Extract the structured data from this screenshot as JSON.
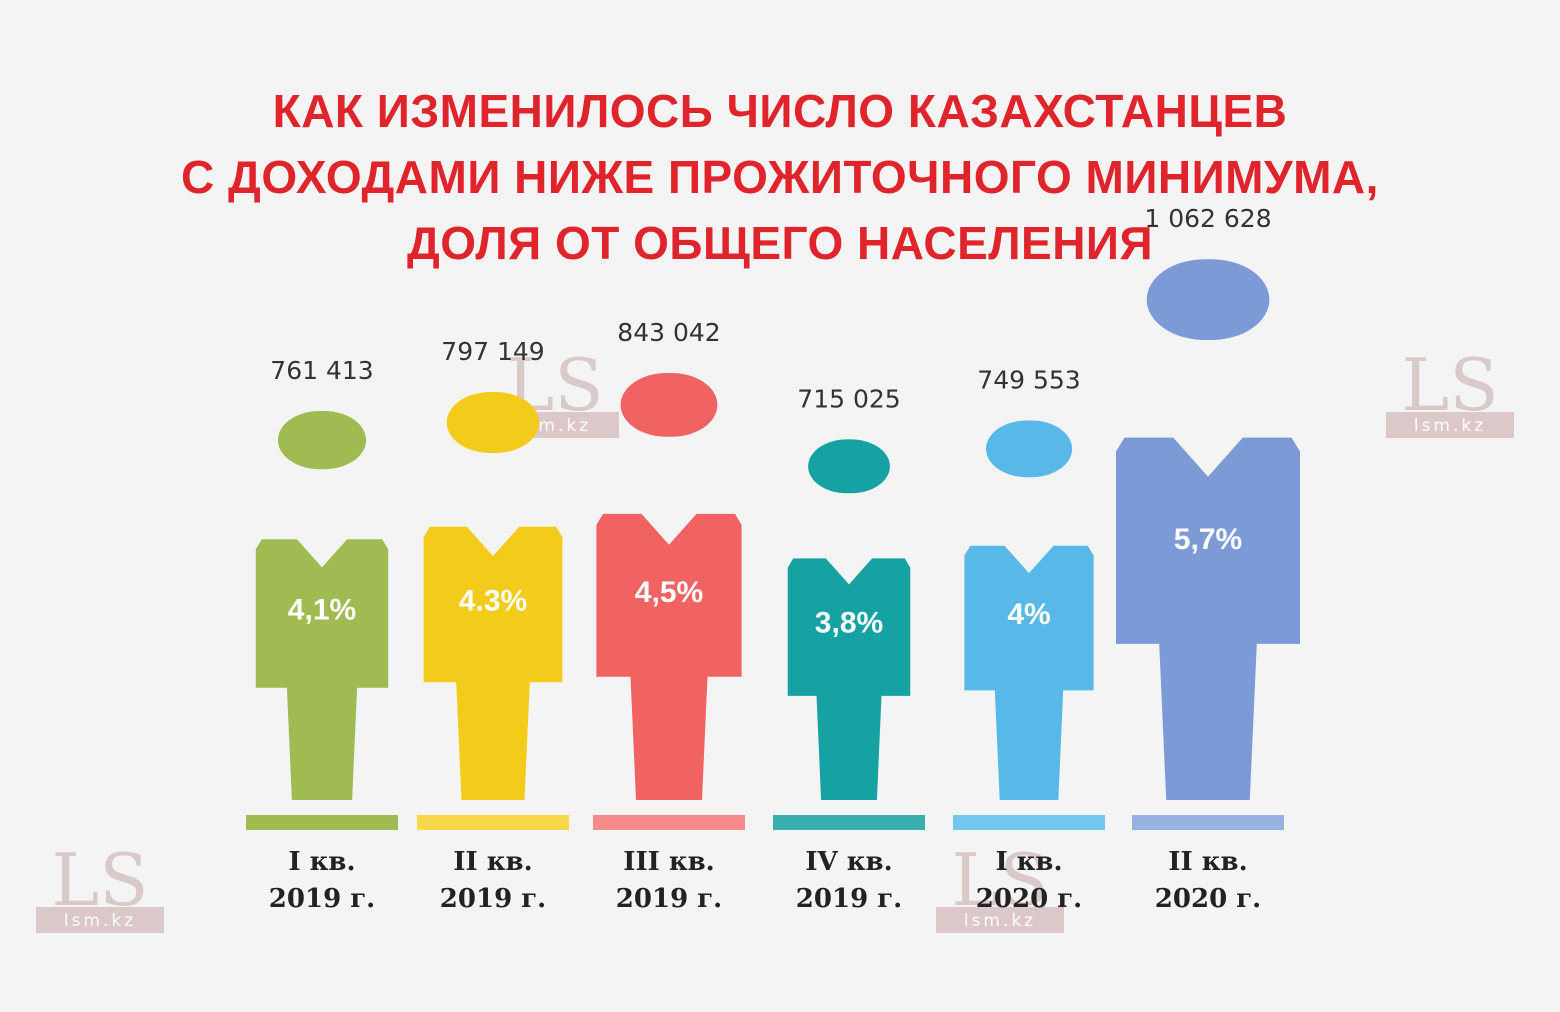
{
  "title_lines": [
    "КАК ИЗМЕНИЛОСЬ ЧИСЛО КАЗАХСТАНЦЕВ",
    "С ДОХОДАМИ НИЖЕ ПРОЖИТОЧНОГО МИНИМУМА,",
    "ДОЛЯ ОТ ОБЩЕГО НАСЕЛЕНИЯ"
  ],
  "watermark": {
    "logo": "LS",
    "site": "lsm.kz"
  },
  "chart_data": {
    "type": "bar",
    "style": "pictogram-people",
    "title": "КАК ИЗМЕНИЛОСЬ ЧИСЛО КАЗАХСТАНЦЕВ С ДОХОДАМИ НИЖЕ ПРОЖИТОЧНОГО МИНИМУМА, ДОЛЯ ОТ ОБЩЕГО НАСЕЛЕНИЯ",
    "categories": [
      [
        "I кв.",
        "2019 г."
      ],
      [
        "II кв.",
        "2019 г."
      ],
      [
        "III кв.",
        "2019 г."
      ],
      [
        "IV кв.",
        "2019 г."
      ],
      [
        "I кв.",
        "2020 г."
      ],
      [
        "II кв.",
        "2020 г."
      ]
    ],
    "series": [
      {
        "values": [
          761413,
          797149,
          843042,
          715025,
          749553,
          1062628
        ],
        "labels": [
          "761 413",
          "797 149",
          "843 042",
          "715 025",
          "749 553",
          "1 062 628"
        ]
      },
      {
        "values": [
          4.1,
          4.3,
          4.5,
          3.8,
          4.0,
          5.7
        ],
        "labels": [
          "4,1%",
          "4.3%",
          "4,5%",
          "3,8%",
          "4%",
          "5,7%"
        ]
      }
    ],
    "colors": [
      "#9fbb52",
      "#f3cc1b",
      "#f16363",
      "#16a2a2",
      "#58b9e8",
      "#7c9bd6"
    ],
    "base_colors": [
      "#9fbb52",
      "#f6d84a",
      "#f58b8b",
      "#3aadad",
      "#73c6ee",
      "#98b1e3"
    ],
    "legend": "none",
    "grid": false
  }
}
